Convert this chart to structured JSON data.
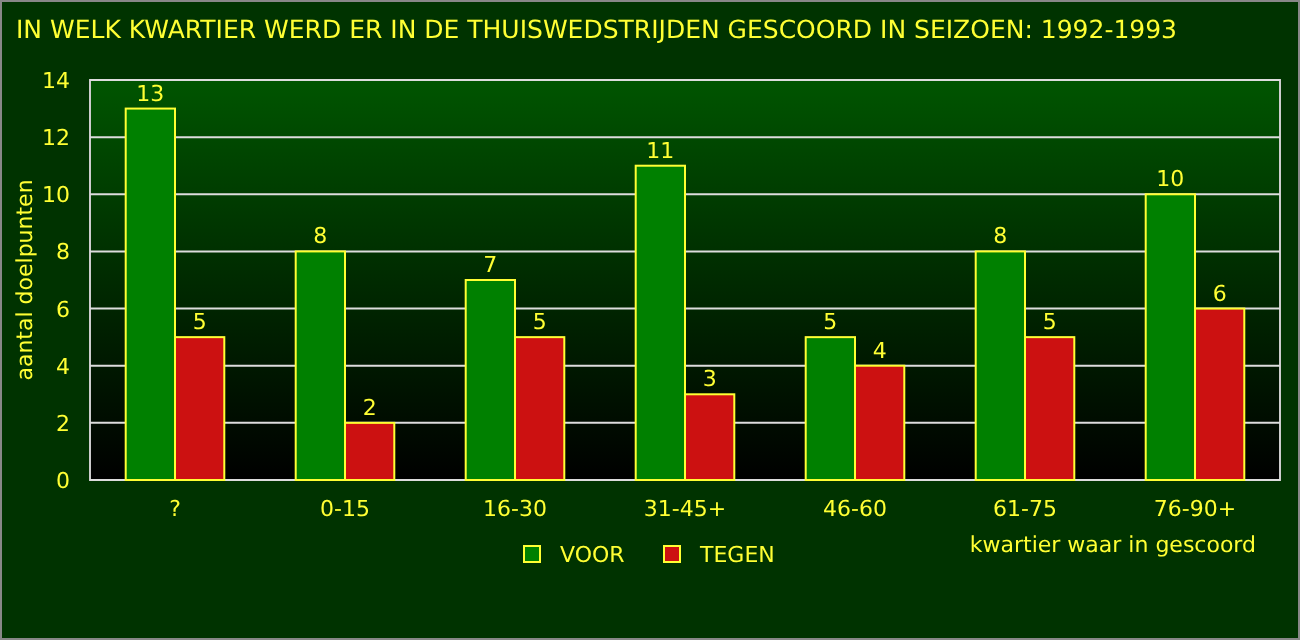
{
  "chart_data": {
    "type": "bar",
    "title": "IN WELK KWARTIER WERD ER IN DE THUISWEDSTRIJDEN GESCOORD IN SEIZOEN: 1992-1993",
    "xlabel": "kwartier waar in gescoord",
    "ylabel": "aantal doelpunten",
    "categories": [
      "?",
      "0-15",
      "16-30",
      "31-45+",
      "46-60",
      "61-75",
      "76-90+"
    ],
    "series": [
      {
        "name": "VOOR",
        "color": "#008000",
        "values": [
          13,
          8,
          7,
          11,
          5,
          8,
          10
        ]
      },
      {
        "name": "TEGEN",
        "color": "#cc1111",
        "values": [
          5,
          2,
          5,
          3,
          4,
          5,
          6
        ]
      }
    ],
    "ylim": [
      0,
      14
    ],
    "yticks": [
      0,
      2,
      4,
      6,
      8,
      10,
      12,
      14
    ],
    "grid": "y",
    "legend": "bottom",
    "data_labels": true
  }
}
